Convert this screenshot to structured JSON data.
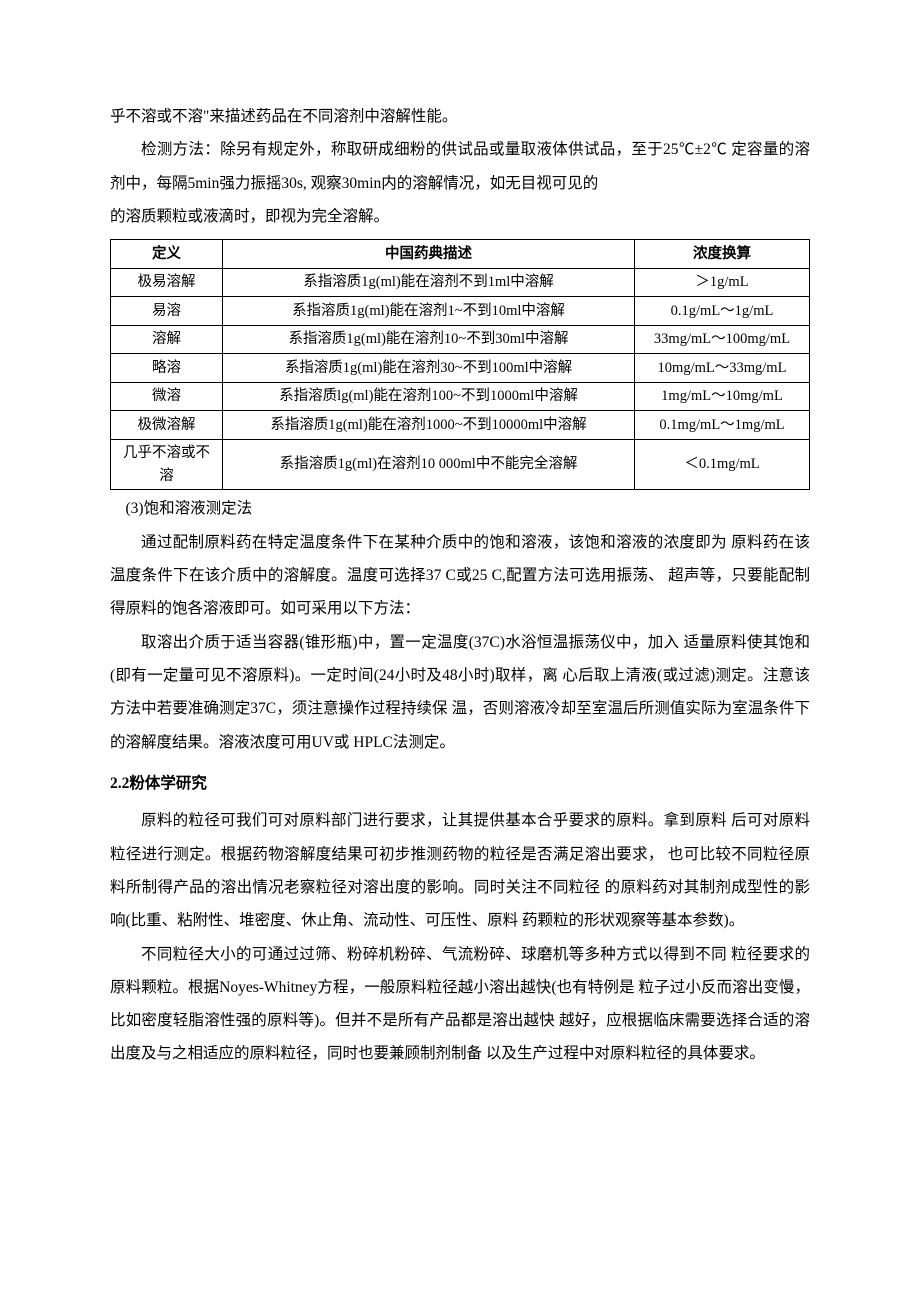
{
  "intro_p1": "乎不溶或不溶\"来描述药品在不同溶剂中溶解性能。",
  "intro_p2": "检测方法：除另有规定外，称取研成细粉的供试品或量取液体供试品，至于25℃±2℃ 定容量的溶剂中，每隔5min强力振摇30s, 观察30min内的溶解情况，如无目视可见的",
  "intro_p3": "的溶质颗粒或液滴时，即视为完全溶解。",
  "table": {
    "headers": {
      "c1": "定义",
      "c2": "中国药典描述",
      "c3": "浓度换算"
    },
    "rows": [
      {
        "c1": "极易溶解",
        "c2": "系指溶质1g(ml)能在溶剂不到1ml中溶解",
        "c3": "＞1g/mL"
      },
      {
        "c1": "易溶",
        "c2": "系指溶质1g(ml)能在溶剂1~不到10ml中溶解",
        "c3": "0.1g/mL～1g/mL"
      },
      {
        "c1": "溶解",
        "c2": "系指溶质1g(ml)能在溶剂10~不到30ml中溶解",
        "c3": "33mg/mL～100mg/mL"
      },
      {
        "c1": "略溶",
        "c2": "系指溶质1g(ml)能在溶剂30~不到100ml中溶解",
        "c3": "10mg/mL～33mg/mL"
      },
      {
        "c1": "微溶",
        "c2": "系指溶质lg(ml)能在溶剂100~不到1000ml中溶解",
        "c3": "1mg/mL～10mg/mL"
      },
      {
        "c1": "极微溶解",
        "c2": "系指溶质1g(ml)能在溶剂1000~不到10000ml中溶解",
        "c3": "0.1mg/mL～1mg/mL"
      },
      {
        "c1": "几乎不溶或不溶",
        "c2": "系指溶质1g(ml)在溶剂10 000ml中不能完全溶解",
        "c3": "＜0.1mg/mL"
      }
    ]
  },
  "p_after_table_title": "(3)饱和溶液测定法",
  "p3_b1": "通过配制原料药在特定温度条件下在某种介质中的饱和溶液，该饱和溶液的浓度即为 原料药在该温度条件下在该介质中的溶解度。温度可选择37 C或25 C,配置方法可选用振荡、 超声等，只要能配制得原料的饱各溶液即可。如可采用以下方法：",
  "p3_b2": "取溶出介质于适当容器(锥形瓶)中，置一定温度(37C)水浴恒温振荡仪中，加入 适量原料使其饱和(即有一定量可见不溶原料)。一定时间(24小时及48小时)取样，离 心后取上清液(或过滤)测定。注意该方法中若要准确测定37C，须注意操作过程持续保 温，否则溶液冷却至室温后所测值实际为室温条件下的溶解度结果。溶液浓度可用UV或 HPLC法测定。",
  "sec22_title": "2.2粉体学研究",
  "sec22_p1": "原料的粒径可我们可对原料部门进行要求，让其提供基本合乎要求的原料。拿到原料 后可对原料粒径进行测定。根据药物溶解度结果可初步推测药物的粒径是否满足溶出要求， 也可比较不同粒径原料所制得产品的溶出情况老察粒径对溶出度的影响。同时关注不同粒径 的原料药对其制剂成型性的影响(比重、粘附性、堆密度、休止角、流动性、可压性、原料 药颗粒的形状观察等基本参数)。",
  "sec22_p2": "不同粒径大小的可通过过筛、粉碎机粉碎、气流粉碎、球磨机等多种方式以得到不同 粒径要求的原料颗粒。根据Noyes-Whitney方程，一般原料粒径越小溶出越快(也有特例是 粒子过小反而溶出变慢，比如密度轻脂溶性强的原料等)。但并不是所有产品都是溶出越快 越好，应根据临床需要选择合适的溶出度及与之相适应的原料粒径，同时也要兼顾制剂制备 以及生产过程中对原料粒径的具体要求。"
}
